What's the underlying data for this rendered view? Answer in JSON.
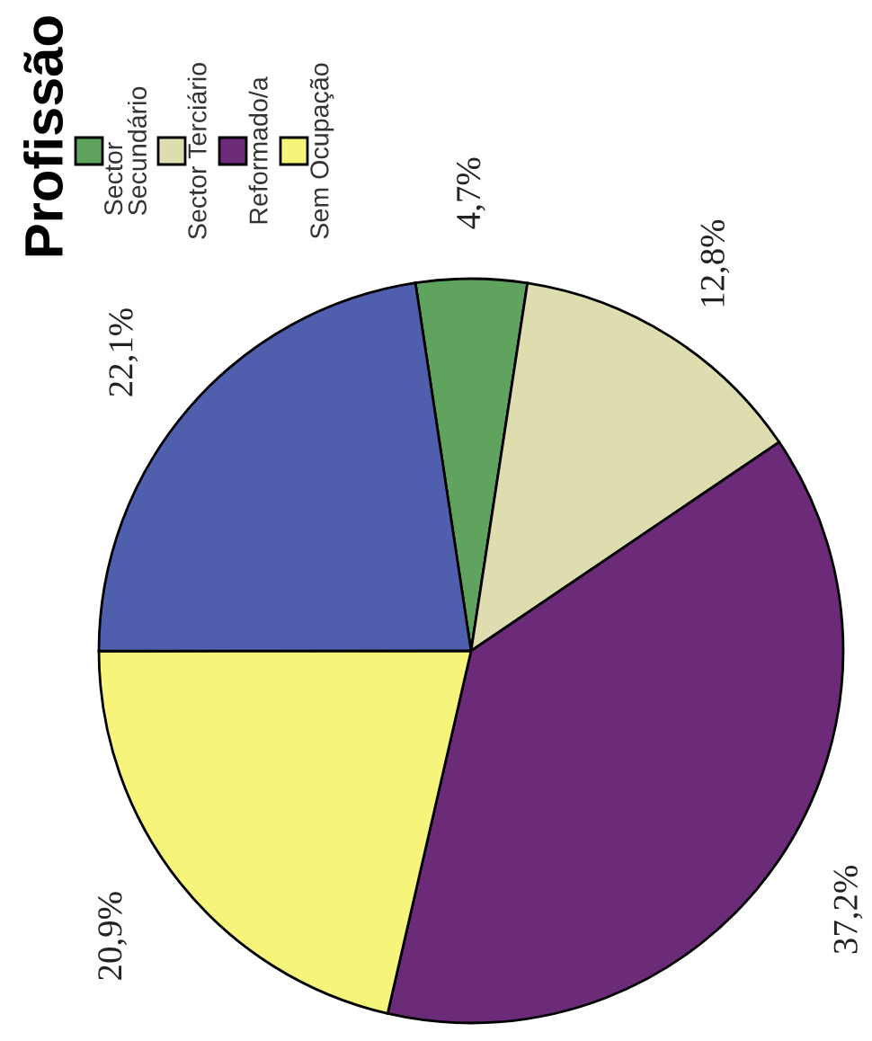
{
  "chart_data": {
    "type": "pie",
    "legend_title": "Profissão",
    "categories": [
      "Sector\nSecundário",
      "Sector Terciário",
      "Reformado/a",
      "Sem Ocupação",
      null
    ],
    "values": [
      4.7,
      12.8,
      37.2,
      20.9,
      22.1
    ],
    "colors": [
      "#5fa35f",
      "#deddb0",
      "#6b2b78",
      "#f7f47c",
      "#4f5fae"
    ],
    "value_labels": [
      "4,7%",
      "12,8%",
      "37,2%",
      "20,9%",
      "22,1%"
    ],
    "legend": "top left"
  }
}
